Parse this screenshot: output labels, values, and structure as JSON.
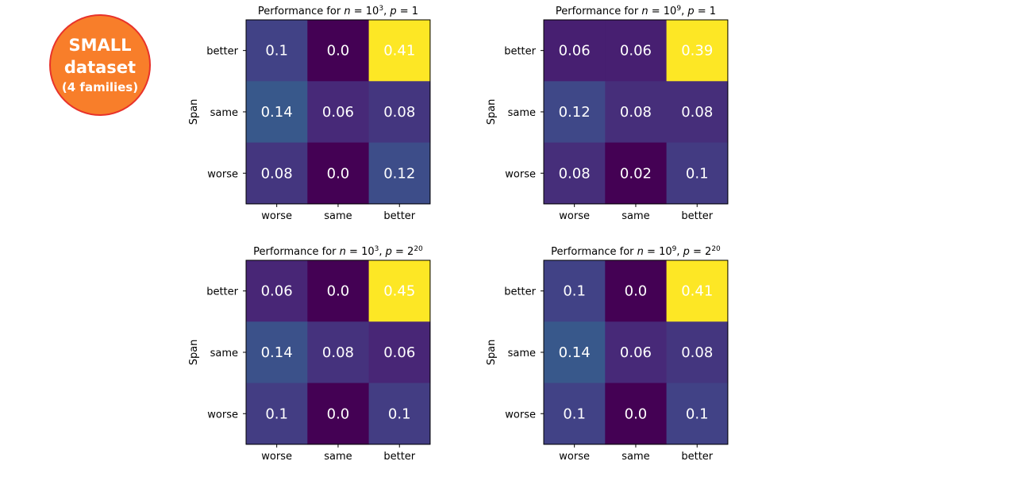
{
  "badge": {
    "line1": "SMALL",
    "line2": "dataset",
    "line3": "(4 families)"
  },
  "chart_data": [
    {
      "type": "heatmap",
      "title": "Performance for n = 10^3, p = 1",
      "title_parts": {
        "prefix": "Performance for ",
        "n_base": "10",
        "n_exp": "3",
        "p_base": "1",
        "p_exp": ""
      },
      "ylabel": "Span",
      "x_categories": [
        "worse",
        "same",
        "better"
      ],
      "y_categories": [
        "better",
        "same",
        "worse"
      ],
      "values": [
        [
          0.1,
          0.0,
          0.41
        ],
        [
          0.14,
          0.06,
          0.08
        ],
        [
          0.08,
          0.0,
          0.12
        ]
      ],
      "labels": [
        [
          "0.1",
          "0.0",
          "0.41"
        ],
        [
          "0.14",
          "0.06",
          "0.08"
        ],
        [
          "0.08",
          "0.0",
          "0.12"
        ]
      ],
      "colormap": "viridis"
    },
    {
      "type": "heatmap",
      "title": "Performance for n = 10^9, p = 1",
      "title_parts": {
        "prefix": "Performance for ",
        "n_base": "10",
        "n_exp": "9",
        "p_base": "1",
        "p_exp": ""
      },
      "ylabel": "Span",
      "x_categories": [
        "worse",
        "same",
        "better"
      ],
      "y_categories": [
        "better",
        "same",
        "worse"
      ],
      "values": [
        [
          0.06,
          0.06,
          0.39
        ],
        [
          0.12,
          0.08,
          0.08
        ],
        [
          0.08,
          0.02,
          0.1
        ]
      ],
      "labels": [
        [
          "0.06",
          "0.06",
          "0.39"
        ],
        [
          "0.12",
          "0.08",
          "0.08"
        ],
        [
          "0.08",
          "0.02",
          "0.1"
        ]
      ],
      "colormap": "viridis"
    },
    {
      "type": "heatmap",
      "title": "Performance for n = 10^3, p = 2^20",
      "title_parts": {
        "prefix": "Performance for ",
        "n_base": "10",
        "n_exp": "3",
        "p_base": "2",
        "p_exp": "20"
      },
      "ylabel": "Span",
      "x_categories": [
        "worse",
        "same",
        "better"
      ],
      "y_categories": [
        "better",
        "same",
        "worse"
      ],
      "values": [
        [
          0.06,
          0.0,
          0.45
        ],
        [
          0.14,
          0.08,
          0.06
        ],
        [
          0.1,
          0.0,
          0.1
        ]
      ],
      "labels": [
        [
          "0.06",
          "0.0",
          "0.45"
        ],
        [
          "0.14",
          "0.08",
          "0.06"
        ],
        [
          "0.1",
          "0.0",
          "0.1"
        ]
      ],
      "colormap": "viridis"
    },
    {
      "type": "heatmap",
      "title": "Performance for n = 10^9, p = 2^20",
      "title_parts": {
        "prefix": "Performance for ",
        "n_base": "10",
        "n_exp": "9",
        "p_base": "2",
        "p_exp": "20"
      },
      "ylabel": "Span",
      "x_categories": [
        "worse",
        "same",
        "better"
      ],
      "y_categories": [
        "better",
        "same",
        "worse"
      ],
      "values": [
        [
          0.1,
          0.0,
          0.41
        ],
        [
          0.14,
          0.06,
          0.08
        ],
        [
          0.1,
          0.0,
          0.1
        ]
      ],
      "labels": [
        [
          "0.1",
          "0.0",
          "0.41"
        ],
        [
          "0.14",
          "0.06",
          "0.08"
        ],
        [
          "0.1",
          "0.0",
          "0.1"
        ]
      ],
      "colormap": "viridis"
    }
  ]
}
